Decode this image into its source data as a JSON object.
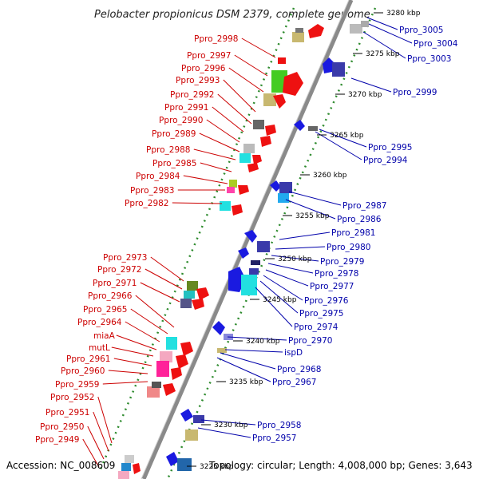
{
  "title": "Pelobacter propionicus DSM 2379, complete genome",
  "footer": {
    "accession": "Accession: NC_008609",
    "summary": "Topology: circular; Length: 4,008,000 bp; Genes: 3,643"
  },
  "ticks": [
    "3280 kbp",
    "3275 kbp",
    "3270 kbp",
    "3265 kbp",
    "3260 kbp",
    "3255 kbp",
    "3250 kbp",
    "3245 kbp",
    "3240 kbp",
    "3235 kbp",
    "3230 kbp",
    "3225 kbp"
  ],
  "left_labels": [
    "Ppro_2998",
    "Ppro_2997",
    "Ppro_2996",
    "Ppro_2993",
    "Ppro_2992",
    "Ppro_2991",
    "Ppro_2990",
    "Ppro_2989",
    "Ppro_2988",
    "Ppro_2985",
    "Ppro_2984",
    "Ppro_2983",
    "Ppro_2982",
    "Ppro_2973",
    "Ppro_2972",
    "Ppro_2971",
    "Ppro_2966",
    "Ppro_2965",
    "Ppro_2964",
    "miaA",
    "mutL",
    "Ppro_2961",
    "Ppro_2960",
    "Ppro_2959",
    "Ppro_2952",
    "Ppro_2951",
    "Ppro_2950",
    "Ppro_2949"
  ],
  "right_labels": [
    "Ppro_3005",
    "Ppro_3004",
    "Ppro_3003",
    "Ppro_2999",
    "Ppro_2995",
    "Ppro_2994",
    "Ppro_2987",
    "Ppro_2986",
    "Ppro_2981",
    "Ppro_2980",
    "Ppro_2979",
    "Ppro_2978",
    "Ppro_2977",
    "Ppro_2976",
    "Ppro_2975",
    "Ppro_2974",
    "Ppro_2970",
    "ispD",
    "Ppro_2968",
    "Ppro_2967",
    "Ppro_2958",
    "Ppro_2957"
  ],
  "colors": {
    "backbone": "#8a8a8a",
    "dots": "#2e8b2e",
    "left_label": "#cc0000",
    "right_label": "#0000aa",
    "forward_arrow": "#ee1111",
    "reverse_arrow": "#1a1ae0"
  }
}
